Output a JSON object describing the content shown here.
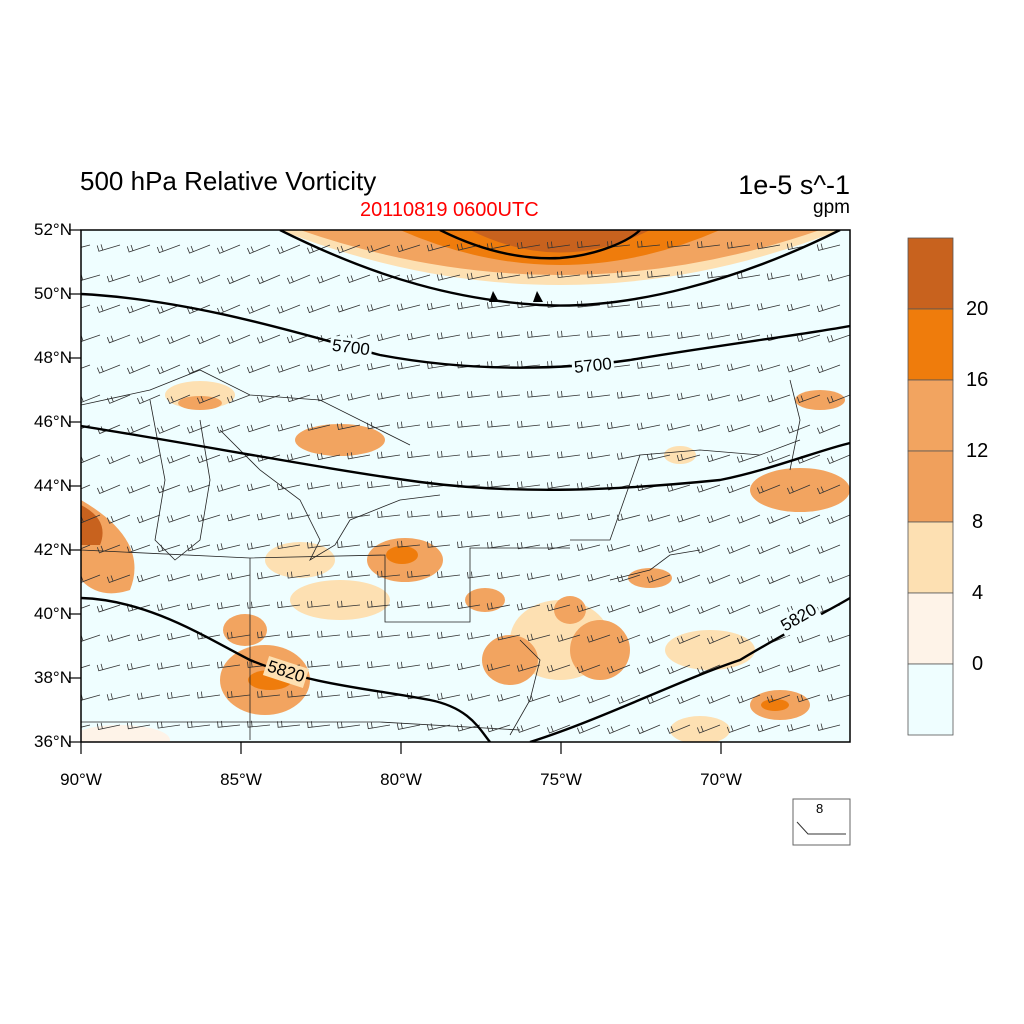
{
  "title": "500 hPa Relative Vorticity",
  "valid_time": "20110819 0600UTC",
  "units": "1e-5 s^-1",
  "contour_units": "gpm",
  "map_extent": {
    "lon": [
      -90,
      -66
    ],
    "lat": [
      36,
      52
    ]
  },
  "lat_labels": [
    "52°N",
    "50°N",
    "48°N",
    "46°N",
    "44°N",
    "42°N",
    "40°N",
    "38°N",
    "36°N"
  ],
  "lon_labels": [
    "90°W",
    "85°W",
    "80°W",
    "75°W",
    "70°W"
  ],
  "contour_labels": [
    "5700",
    "5700",
    "5820",
    "5820"
  ],
  "colorbar": {
    "labels": [
      "20",
      "16",
      "12",
      "8",
      "4",
      "0"
    ],
    "colors": [
      "#c8621e",
      "#ef7c0c",
      "#f2a460",
      "#f0a05c",
      "#fde0b2",
      "#fef3e8",
      "#effeff"
    ]
  },
  "reference_vector": {
    "label": "8"
  }
}
